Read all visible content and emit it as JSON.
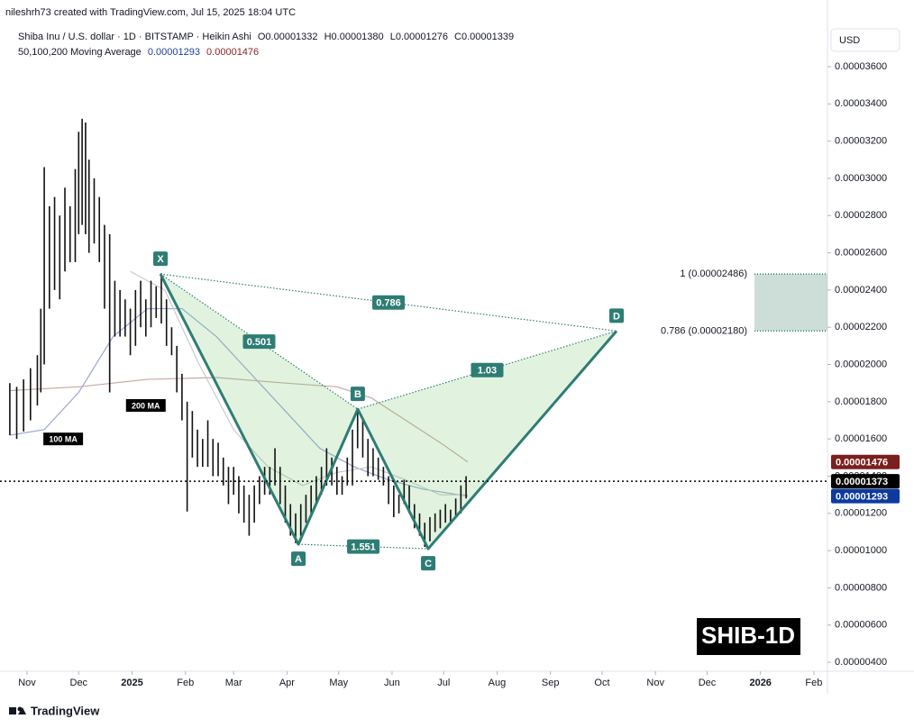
{
  "header": {
    "credit": "nileshrh73 created with TradingView.com, Jul 15, 2025 18:04 UTC",
    "symbol": "Shiba Inu / U.S. dollar · 1D · BITSTAMP · Heikin Ashi",
    "ohlc": [
      "O0.00001332",
      "H0.00001380",
      "L0.00001276",
      "C0.00001339"
    ],
    "ma_legend": {
      "name": "50,100,200 Moving Average",
      "values": [
        {
          "text": "0.00001293",
          "color": "#1e3f9e"
        },
        {
          "text": "0.00001476",
          "color": "#8b1f1f"
        }
      ]
    },
    "currency": "USD"
  },
  "watermark": "SHIB-1D",
  "brand": "TradingView",
  "chart_data": {
    "type": "heikin-ashi",
    "xlim": [
      -15.7,
      464.9
    ],
    "xticks": [
      {
        "value": 0,
        "label": "Nov"
      },
      {
        "value": 30,
        "label": "Dec"
      },
      {
        "value": 61,
        "label": "2025"
      },
      {
        "value": 92,
        "label": "Feb"
      },
      {
        "value": 120,
        "label": "Mar"
      },
      {
        "value": 151,
        "label": "Apr"
      },
      {
        "value": 181,
        "label": "May"
      },
      {
        "value": 212,
        "label": "Jun"
      },
      {
        "value": 242,
        "label": "Jul"
      },
      {
        "value": 273,
        "label": "Aug"
      },
      {
        "value": 304,
        "label": "Sep"
      },
      {
        "value": 334,
        "label": "Oct"
      },
      {
        "value": 365,
        "label": "Nov"
      },
      {
        "value": 395,
        "label": "Dec"
      },
      {
        "value": 426,
        "label": "2026"
      },
      {
        "value": 457,
        "label": "Feb"
      }
    ],
    "ylim": [
      3.52e-06,
      3.813e-05
    ],
    "yticks": [
      {
        "value": 3.6e-05,
        "label": "0.00003600"
      },
      {
        "value": 3.4e-05,
        "label": "0.00003400"
      },
      {
        "value": 3.2e-05,
        "label": "0.00003200"
      },
      {
        "value": 3e-05,
        "label": "0.00003000"
      },
      {
        "value": 2.8e-05,
        "label": "0.00002800"
      },
      {
        "value": 2.6e-05,
        "label": "0.00002600"
      },
      {
        "value": 2.4e-05,
        "label": "0.00002400"
      },
      {
        "value": 2.2e-05,
        "label": "0.00002200"
      },
      {
        "value": 2e-05,
        "label": "0.00002000"
      },
      {
        "value": 1.8e-05,
        "label": "0.00001800"
      },
      {
        "value": 1.6e-05,
        "label": "0.00001600"
      },
      {
        "value": 1.4e-05,
        "label": "0.00001400"
      },
      {
        "value": 1.2e-05,
        "label": "0.00001200"
      },
      {
        "value": 1e-05,
        "label": "0.00001000"
      },
      {
        "value": 8e-06,
        "label": "0.00000800"
      },
      {
        "value": 6e-06,
        "label": "0.00000600"
      },
      {
        "value": 4e-06,
        "label": "0.00000400"
      }
    ],
    "grid": false,
    "bars": {
      "color": "#111111",
      "x": [
        -10,
        -6,
        -2,
        2,
        6,
        8,
        10,
        13,
        16,
        19,
        22,
        25,
        28,
        30,
        32,
        34,
        36,
        39,
        42,
        45,
        48,
        51,
        54,
        57,
        60,
        63,
        66,
        69,
        72,
        75,
        78,
        81,
        84,
        87,
        90,
        93,
        96,
        99,
        102,
        105,
        108,
        111,
        114,
        117,
        120,
        123,
        126,
        129,
        132,
        135,
        138,
        141,
        144,
        147,
        150,
        153,
        156,
        159,
        162,
        165,
        168,
        171,
        174,
        177,
        180,
        183,
        186,
        189,
        192,
        195,
        198,
        201,
        204,
        207,
        210,
        213,
        216,
        219,
        222,
        225,
        228,
        231,
        234,
        237,
        240,
        243,
        246,
        249,
        252,
        255
      ],
      "high": [
        1.9e-05,
        1.88e-05,
        1.92e-05,
        1.98e-05,
        2.05e-05,
        2.3e-05,
        3.06e-05,
        2.85e-05,
        2.9e-05,
        2.8e-05,
        2.95e-05,
        2.85e-05,
        3.05e-05,
        3.25e-05,
        3.32e-05,
        3.3e-05,
        3.1e-05,
        3e-05,
        2.9e-05,
        2.75e-05,
        2.7e-05,
        2.45e-05,
        2.4e-05,
        2.35e-05,
        2.3e-05,
        2.4e-05,
        2.45e-05,
        2.35e-05,
        2.45e-05,
        2.42e-05,
        2.49e-05,
        2.35e-05,
        2.2e-05,
        2.1e-05,
        1.95e-05,
        1.8e-05,
        1.75e-05,
        1.65e-05,
        1.6e-05,
        1.7e-05,
        1.6e-05,
        1.58e-05,
        1.5e-05,
        1.45e-05,
        1.45e-05,
        1.4e-05,
        1.35e-05,
        1.3e-05,
        1.35e-05,
        1.4e-05,
        1.45e-05,
        1.45e-05,
        1.55e-05,
        1.45e-05,
        1.35e-05,
        1.25e-05,
        1.2e-05,
        1.25e-05,
        1.3e-05,
        1.35e-05,
        1.4e-05,
        1.45e-05,
        1.55e-05,
        1.5e-05,
        1.45e-05,
        1.4e-05,
        1.5e-05,
        1.65e-05,
        1.76e-05,
        1.7e-05,
        1.6e-05,
        1.55e-05,
        1.5e-05,
        1.45e-05,
        1.4e-05,
        1.35e-05,
        1.3e-05,
        1.38e-05,
        1.35e-05,
        1.25e-05,
        1.2e-05,
        1.15e-05,
        1.18e-05,
        1.2e-05,
        1.22e-05,
        1.25e-05,
        1.22e-05,
        1.28e-05,
        1.35e-05,
        1.4e-05
      ],
      "low": [
        1.62e-05,
        1.6e-05,
        1.64e-05,
        1.7e-05,
        1.78e-05,
        1.85e-05,
        2e-05,
        2.3e-05,
        2.4e-05,
        2.35e-05,
        2.5e-05,
        2.55e-05,
        2.55e-05,
        2.7e-05,
        2.75e-05,
        2.7e-05,
        2.6e-05,
        2.65e-05,
        2.55e-05,
        2.3e-05,
        1.85e-05,
        2.15e-05,
        2.15e-05,
        2.15e-05,
        2.05e-05,
        2.1e-05,
        2.2e-05,
        2.15e-05,
        2.2e-05,
        2.25e-05,
        2.22e-05,
        2.1e-05,
        2.05e-05,
        1.85e-05,
        1.7e-05,
        1.21e-05,
        1.5e-05,
        1.45e-05,
        1.45e-05,
        1.45e-05,
        1.4e-05,
        1.4e-05,
        1.35e-05,
        1.25e-05,
        1.3e-05,
        1.2e-05,
        1.15e-05,
        1.08e-05,
        1.15e-05,
        1.25e-05,
        1.3e-05,
        1.3e-05,
        1.35e-05,
        1.25e-05,
        1.15e-05,
        1.08e-05,
        1.04e-05,
        1.08e-05,
        1.15e-05,
        1.2e-05,
        1.25e-05,
        1.3e-05,
        1.35e-05,
        1.35e-05,
        1.3e-05,
        1.3e-05,
        1.35e-05,
        1.35e-05,
        1.55e-05,
        1.5e-05,
        1.4e-05,
        1.4e-05,
        1.38e-05,
        1.35e-05,
        1.25e-05,
        1.18e-05,
        1.2e-05,
        1.25e-05,
        1.2e-05,
        1.12e-05,
        1.08e-05,
        1.02e-05,
        1.05e-05,
        1.1e-05,
        1.12e-05,
        1.15e-05,
        1.15e-05,
        1.18e-05,
        1.2e-05,
        1.28e-05
      ]
    },
    "moving_averages": [
      {
        "name": "100 MA",
        "color": "#9aa3d9",
        "label_at": [
          21,
          1.6e-05
        ],
        "x": [
          -10,
          10,
          30,
          50,
          70,
          90,
          110,
          130,
          150,
          170,
          190,
          210,
          230,
          256
        ],
        "values": [
          1.62e-05,
          1.65e-05,
          1.85e-05,
          2.15e-05,
          2.3e-05,
          2.3e-05,
          2.15e-05,
          1.95e-05,
          1.75e-05,
          1.55e-05,
          1.45e-05,
          1.38e-05,
          1.33e-05,
          1.293e-05
        ]
      },
      {
        "name": "200 MA",
        "color": "#c7a9a3",
        "label_at": [
          69,
          1.78e-05
        ],
        "x": [
          -10,
          30,
          70,
          110,
          150,
          180,
          200,
          220,
          240,
          256
        ],
        "values": [
          1.86e-05,
          1.88e-05,
          1.92e-05,
          1.93e-05,
          1.9e-05,
          1.88e-05,
          1.82e-05,
          1.7e-05,
          1.58e-05,
          1.476e-05
        ]
      },
      {
        "color": "#c9c9c9",
        "x": [
          60,
          80,
          100,
          120,
          140,
          160,
          180,
          200,
          220,
          240,
          256
        ],
        "values": [
          2.5e-05,
          2.4e-05,
          2e-05,
          1.65e-05,
          1.45e-05,
          1.35e-05,
          1.42e-05,
          1.45e-05,
          1.38e-05,
          1.3e-05,
          1.3e-05
        ]
      }
    ],
    "price_tags": [
      {
        "value": 1.476e-05,
        "label": "0.00001476",
        "color": "#7b1e1e"
      },
      {
        "value": 1.373e-05,
        "label": "0.00001373",
        "color": "#000000",
        "line": "dotted"
      },
      {
        "value": 1.293e-05,
        "label": "0.00001293",
        "color": "#0d3a9e"
      }
    ],
    "pattern": {
      "color": "#2e7d74",
      "fill": "rgba(120,200,110,0.22)",
      "points": [
        {
          "label": "X",
          "x": 77.5,
          "y": 2.486e-05
        },
        {
          "label": "A",
          "x": 157.6,
          "y": 1.034e-05
        },
        {
          "label": "B",
          "x": 192.1,
          "y": 1.76e-05
        },
        {
          "label": "C",
          "x": 233,
          "y": 1.01e-05
        },
        {
          "label": "D",
          "x": 342.4,
          "y": 2.18e-05
        }
      ],
      "ratios": [
        "0.501",
        "0.786",
        "1.551",
        "1.03"
      ]
    },
    "target_zone": {
      "color": "rgba(110,160,140,0.35)",
      "levels": [
        {
          "value": 2.486e-05,
          "label": "1 (0.00002486)"
        },
        {
          "value": 2.18e-05,
          "label": "0.786 (0.00002180)"
        }
      ]
    }
  }
}
